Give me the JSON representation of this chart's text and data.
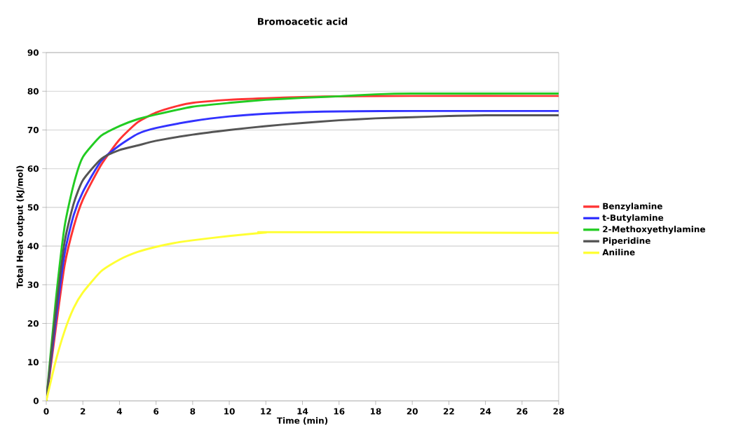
{
  "chart_data": {
    "type": "line",
    "title": "Bromoacetic acid",
    "xlabel": "Time (min)",
    "ylabel": "Total Heat output (kJ/mol)",
    "xlim": [
      0,
      28
    ],
    "xticks": [
      0,
      2,
      4,
      6,
      8,
      10,
      12,
      14,
      16,
      18,
      20,
      22,
      24,
      26,
      28
    ],
    "ylim": [
      0,
      90
    ],
    "yticks": [
      0,
      10,
      20,
      30,
      40,
      50,
      60,
      70,
      80,
      90
    ],
    "grid": "y",
    "legend": "right",
    "marker": "none",
    "line_style": "solid",
    "series": [
      {
        "name": "Benzylamine",
        "color": "#ff3333",
        "x": [
          0,
          0.5,
          1,
          1.5,
          2,
          3,
          4,
          5,
          6,
          7,
          8,
          10,
          12,
          14,
          16,
          20,
          28
        ],
        "values": [
          0,
          18,
          35,
          45,
          52,
          61,
          67.5,
          72,
          74.5,
          76,
          77,
          77.8,
          78.2,
          78.5,
          78.7,
          78.8,
          78.8
        ]
      },
      {
        "name": "t-Butylamine",
        "color": "#3333ff",
        "x": [
          0,
          0.5,
          1,
          1.5,
          2,
          3,
          4,
          5,
          6,
          8,
          10,
          12,
          14,
          16,
          20,
          28
        ],
        "values": [
          0,
          20,
          38,
          48,
          54,
          62,
          66,
          69,
          70.5,
          72.3,
          73.5,
          74.2,
          74.6,
          74.8,
          74.9,
          74.9
        ]
      },
      {
        "name": "2-Methoxyethylamine",
        "color": "#22cc22",
        "x": [
          0,
          0.5,
          1,
          1.5,
          2,
          3,
          4,
          5,
          6,
          8,
          10,
          12,
          14,
          16,
          18,
          20,
          28
        ],
        "values": [
          0,
          25,
          45,
          56,
          63,
          68.5,
          71,
          72.8,
          74,
          76,
          77,
          77.8,
          78.3,
          78.7,
          79.2,
          79.4,
          79.4
        ]
      },
      {
        "name": "Piperidine",
        "color": "#555555",
        "x": [
          0,
          0.5,
          1,
          1.5,
          2,
          3,
          4,
          5,
          6,
          8,
          10,
          12,
          14,
          16,
          18,
          20,
          22,
          24,
          28
        ],
        "values": [
          0,
          22,
          41,
          51,
          57,
          62.5,
          64.8,
          66,
          67.2,
          68.8,
          70,
          71,
          71.8,
          72.5,
          73,
          73.3,
          73.6,
          73.8,
          73.8
        ]
      },
      {
        "name": "Aniline",
        "color": "#ffff33",
        "x": [
          0,
          0.5,
          1,
          1.5,
          2,
          3,
          4,
          5,
          6,
          7,
          8,
          10,
          12,
          12.3,
          28
        ],
        "values": [
          0,
          10,
          18,
          24,
          28,
          33.5,
          36.5,
          38.5,
          39.8,
          40.8,
          41.5,
          42.6,
          43.5,
          43.6,
          43.4
        ]
      }
    ]
  }
}
